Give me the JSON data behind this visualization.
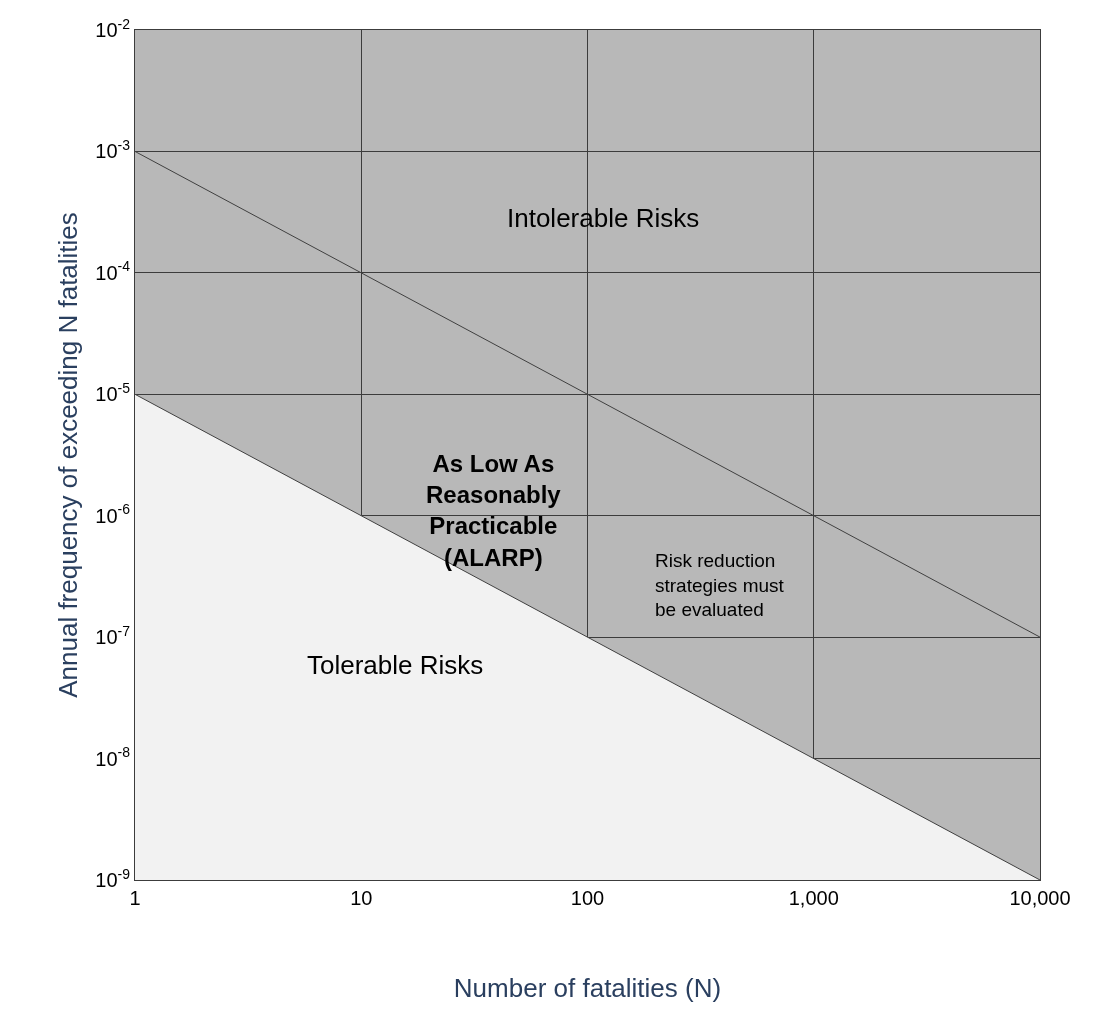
{
  "chart_data": {
    "type": "line",
    "xlabel": "Number of fatalities (N)",
    "ylabel": "Annual frequency of exceeding N fatalities",
    "x": [
      1,
      10000
    ],
    "series": [
      {
        "type": "area",
        "color": "#f2f2f2",
        "values": [
          1e-05,
          1e-09
        ]
      },
      {
        "color": "#404040",
        "values": [
          0.001,
          1e-07
        ]
      }
    ],
    "log": "xy",
    "xlim": [
      1,
      10000
    ],
    "ylim": [
      1e-09,
      0.01
    ],
    "xticks": [
      1,
      10,
      100,
      {
        "value": 1000,
        "label": "1,000"
      },
      {
        "value": 10000,
        "label": "10,000"
      }
    ],
    "yticks": [
      {
        "value": 1e-09,
        "label": "10$^{-9}$"
      },
      {
        "value": 1e-08,
        "label": "10$^{-8}$"
      },
      {
        "value": 1e-07,
        "label": "10$^{-7}$"
      },
      {
        "value": 1e-06,
        "label": "10$^{-6}$"
      },
      {
        "value": 1e-05,
        "label": "10$^{-5}$"
      },
      {
        "value": 0.0001,
        "label": "10$^{-4}$"
      },
      {
        "value": 0.001,
        "label": "10$^{-3}$"
      },
      {
        "value": 0.01,
        "label": "10$^{-2}$"
      }
    ],
    "grid": true,
    "annotations": [
      "Intolerable Risks",
      "As Low As\nReasonably\nPracticable\n(ALARP)",
      "Risk reduction\nstrategies must\nbe evaluated",
      "Tolerable Risks"
    ]
  }
}
